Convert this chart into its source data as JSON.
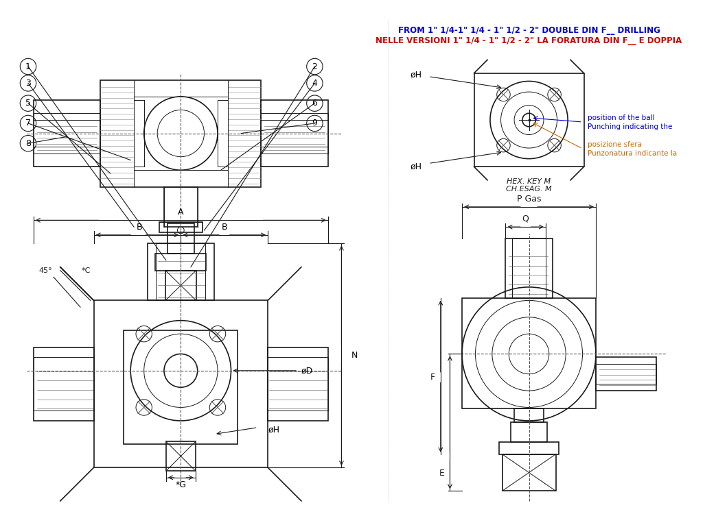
{
  "title": "",
  "background_color": "#ffffff",
  "line_color": "#1a1a1a",
  "dim_color": "#1a1a1a",
  "circle_color": "#333333",
  "annotation_color": "#000000",
  "red_text_color": "#cc0000",
  "blue_text_color": "#0000cc",
  "orange_text_color": "#cc6600",
  "part_labels": [
    "1",
    "2",
    "3",
    "4",
    "5",
    "6",
    "7",
    "8",
    "9"
  ],
  "dim_labels_left": [
    "E",
    "F"
  ],
  "dim_labels_bottom_right": [
    "Q",
    "P Gas",
    "CH.ESAG. M",
    "HEX. KEY M"
  ],
  "dim_labels_bottom_view": [
    "*G",
    "øH",
    "øD",
    "N",
    "B",
    "B",
    "A",
    "*C",
    "45°"
  ],
  "annotation_line1": "NELLE VERSIONI 1\" 1/4 - 1\" 1/2 - 2\" LA FORATURA DIN F__ E DOPPIA",
  "annotation_line2": "FROM 1\" 1/4-1\" 1/4 - 1\" 1/2 - 2\" DOUBLE DIN F__ DRILLING"
}
